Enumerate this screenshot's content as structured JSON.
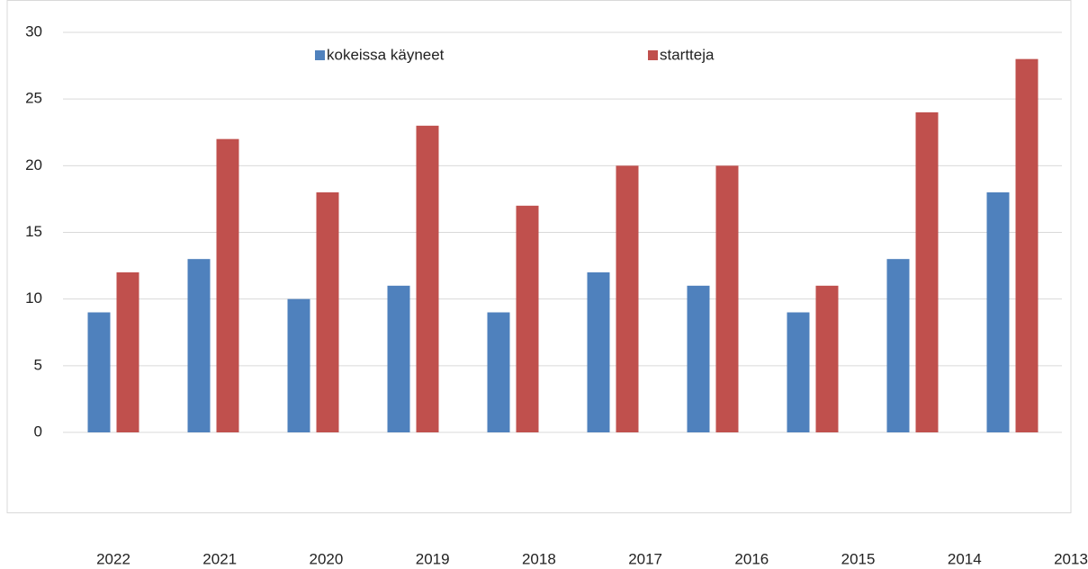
{
  "chart_data": {
    "type": "bar",
    "categories": [
      "2022",
      "2021",
      "2020",
      "2019",
      "2018",
      "2017",
      "2016",
      "2015",
      "2014",
      "2013"
    ],
    "series": [
      {
        "name": "kokeissa käyneet",
        "color": "#4f81bd",
        "values": [
          9,
          13,
          10,
          11,
          9,
          12,
          11,
          9,
          13,
          18
        ]
      },
      {
        "name": "startteja",
        "color": "#c0504d",
        "values": [
          12,
          22,
          18,
          23,
          17,
          20,
          20,
          11,
          24,
          28
        ]
      }
    ],
    "ylim": [
      0,
      30
    ],
    "yticks": [
      0,
      5,
      10,
      15,
      20,
      25,
      30
    ],
    "grid": true
  }
}
